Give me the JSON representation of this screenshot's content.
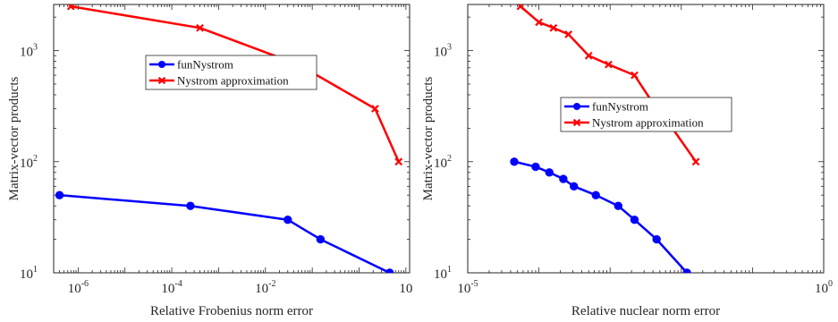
{
  "chart_data": [
    {
      "type": "line",
      "xscale": "log",
      "yscale": "log",
      "xlabel": "Relative Frobenius norm error",
      "ylabel": "Matrix-vector products",
      "xlim": [
        3e-07,
        12
      ],
      "ylim": [
        10,
        2600
      ],
      "xticks": [
        {
          "value": 1e-06,
          "base": "10",
          "exp": "-6"
        },
        {
          "value": 0.0001,
          "base": "10",
          "exp": "-4"
        },
        {
          "value": 0.01,
          "base": "10",
          "exp": "-2"
        },
        {
          "value": 10,
          "base": "10",
          "exp": ""
        }
      ],
      "yticks": [
        {
          "value": 10,
          "base": "10",
          "exp": "1"
        },
        {
          "value": 100,
          "base": "10",
          "exp": "2"
        },
        {
          "value": 1000,
          "base": "10",
          "exp": "3"
        }
      ],
      "grid": false,
      "legend_position": "upper-center",
      "series": [
        {
          "name": "funNystrom",
          "color": "#0000ff",
          "marker": "circle",
          "x": [
            4e-07,
            0.00025,
            0.03,
            0.15,
            4.5
          ],
          "y": [
            50,
            40,
            30,
            20,
            10
          ]
        },
        {
          "name": "Nystrom approximation",
          "color": "#ff0000",
          "marker": "cross",
          "x": [
            7e-07,
            0.0004,
            0.05,
            2.2,
            7
          ],
          "y": [
            2500,
            1600,
            750,
            300,
            100
          ]
        }
      ]
    },
    {
      "type": "line",
      "xscale": "log",
      "yscale": "log",
      "xlabel": "Relative nuclear norm error",
      "ylabel": "Matrix-vector products",
      "xlim": [
        1e-05,
        1
      ],
      "ylim": [
        10,
        2600
      ],
      "xticks": [
        {
          "value": 1e-05,
          "base": "10",
          "exp": "-5"
        },
        {
          "value": 1,
          "base": "10",
          "exp": "0"
        }
      ],
      "yticks": [
        {
          "value": 10,
          "base": "10",
          "exp": "1"
        },
        {
          "value": 100,
          "base": "10",
          "exp": "2"
        },
        {
          "value": 1000,
          "base": "10",
          "exp": "3"
        }
      ],
      "grid": false,
      "legend_position": "center",
      "series": [
        {
          "name": "funNystrom",
          "color": "#0000ff",
          "marker": "circle",
          "x": [
            4.5e-05,
            9e-05,
            0.00014,
            0.00022,
            0.00031,
            0.00063,
            0.0013,
            0.0022,
            0.0045,
            0.012
          ],
          "y": [
            100,
            90,
            80,
            70,
            60,
            50,
            40,
            30,
            20,
            10
          ]
        },
        {
          "name": "Nystrom approximation",
          "color": "#ff0000",
          "marker": "cross",
          "x": [
            5.5e-05,
            0.0001,
            0.00016,
            0.00026,
            0.0005,
            0.00095,
            0.0022,
            0.0045,
            0.0075,
            0.016
          ],
          "y": [
            2500,
            1800,
            1600,
            1400,
            900,
            750,
            600,
            300,
            200,
            100
          ]
        }
      ]
    }
  ]
}
